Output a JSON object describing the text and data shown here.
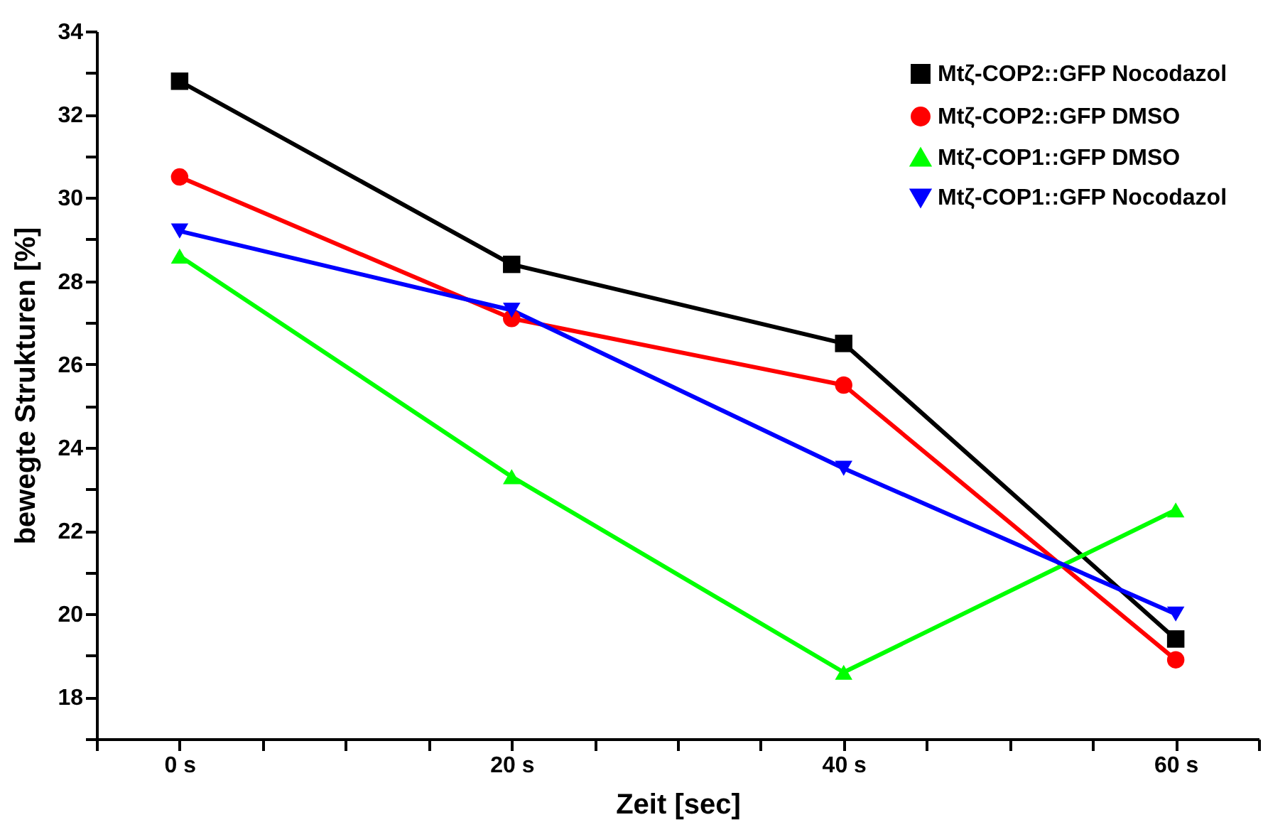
{
  "chart_data": {
    "type": "line",
    "xlabel": "Zeit [sec]",
    "ylabel": "bewegte Strukturen [%]",
    "x": [
      0,
      20,
      40,
      60
    ],
    "series": [
      {
        "name": "Mtζ-COP2::GFP Nocodazol",
        "color": "#000000",
        "marker": "square",
        "values": [
          32.8,
          28.4,
          26.5,
          19.4
        ]
      },
      {
        "name": "Mtζ-COP2::GFP DMSO",
        "color": "#ff0000",
        "marker": "circle",
        "values": [
          30.5,
          27.1,
          25.5,
          18.9
        ]
      },
      {
        "name": "Mtζ-COP1::GFP DMSO",
        "color": "#00ff00",
        "marker": "triangle",
        "values": [
          28.6,
          23.3,
          18.6,
          22.5
        ]
      },
      {
        "name": "Mtζ-COP1::GFP Nocodazol",
        "color": "#0000ff",
        "marker": "triangle-down",
        "values": [
          29.2,
          27.3,
          23.5,
          20.0
        ]
      }
    ],
    "xlim": [
      -5,
      65
    ],
    "xticks": [
      {
        "value": -5,
        "label": null
      },
      {
        "value": 0,
        "label": "0 s"
      },
      {
        "value": 5,
        "label": null
      },
      {
        "value": 10,
        "label": null
      },
      {
        "value": 15,
        "label": null
      },
      {
        "value": 20,
        "label": "20 s"
      },
      {
        "value": 25,
        "label": null
      },
      {
        "value": 30,
        "label": null
      },
      {
        "value": 35,
        "label": null
      },
      {
        "value": 40,
        "label": "40 s"
      },
      {
        "value": 45,
        "label": null
      },
      {
        "value": 50,
        "label": null
      },
      {
        "value": 55,
        "label": null
      },
      {
        "value": 60,
        "label": "60 s"
      },
      {
        "value": 65,
        "label": null
      }
    ],
    "ylim": [
      17,
      34
    ],
    "yticks": [
      {
        "value": 17,
        "label": null
      },
      18,
      {
        "value": 19,
        "label": null
      },
      20,
      {
        "value": 21,
        "label": null
      },
      22,
      {
        "value": 23,
        "label": null
      },
      24,
      {
        "value": 25,
        "label": null
      },
      26,
      {
        "value": 27,
        "label": null
      },
      28,
      {
        "value": 29,
        "label": null
      },
      30,
      {
        "value": 31,
        "label": null
      },
      32,
      {
        "value": 33,
        "label": null
      },
      34
    ],
    "grid": false,
    "legend": "top right",
    "line_style": "solid"
  }
}
